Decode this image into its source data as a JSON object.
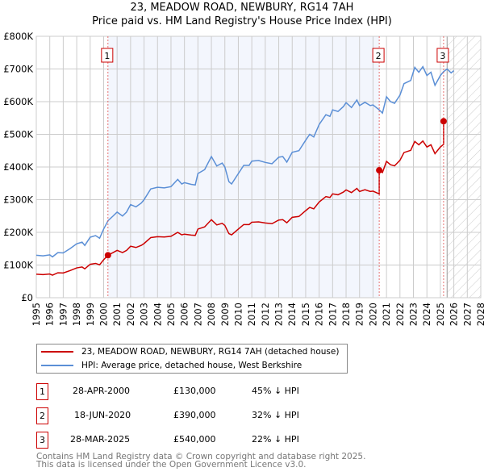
{
  "title": "23, MEADOW ROAD, NEWBURY, RG14 7AH",
  "subtitle": "Price paid vs. HM Land Registry's House Price Index (HPI)",
  "chart_data": {
    "type": "line",
    "xlim": [
      1995,
      2028
    ],
    "ylim": [
      0,
      800000
    ],
    "yticks": [
      0,
      100000,
      200000,
      300000,
      400000,
      500000,
      600000,
      700000,
      800000
    ],
    "ytick_labels": [
      "£0",
      "£100K",
      "£200K",
      "£300K",
      "£400K",
      "£500K",
      "£600K",
      "£700K",
      "£800K"
    ],
    "xticks": [
      1995,
      1996,
      1997,
      1998,
      1999,
      2000,
      2001,
      2002,
      2003,
      2004,
      2005,
      2006,
      2007,
      2008,
      2009,
      2010,
      2011,
      2012,
      2013,
      2014,
      2015,
      2016,
      2017,
      2018,
      2019,
      2020,
      2021,
      2022,
      2023,
      2024,
      2025,
      2026,
      2027,
      2028
    ],
    "forecast_start": 2025.5,
    "hpi_series": {
      "name": "HPI: Average price, detached house, West Berkshire",
      "color": "#5b8fd6",
      "x": [
        1995,
        1995.5,
        1996,
        1996.2,
        1996.6,
        1997,
        1997.5,
        1998,
        1998.4,
        1998.6,
        1999,
        1999.4,
        1999.7,
        2000,
        2000.33,
        2000.7,
        2001,
        2001.4,
        2001.7,
        2002,
        2002.4,
        2002.8,
        2003,
        2003.5,
        2004,
        2004.5,
        2005,
        2005.5,
        2005.8,
        2006,
        2006.5,
        2006.8,
        2007,
        2007.5,
        2008,
        2008.4,
        2008.8,
        2009,
        2009.3,
        2009.5,
        2010,
        2010.4,
        2010.8,
        2011,
        2011.5,
        2012,
        2012.5,
        2013,
        2013.3,
        2013.6,
        2014,
        2014.5,
        2015,
        2015.3,
        2015.6,
        2016,
        2016.5,
        2016.8,
        2017,
        2017.4,
        2017.8,
        2018,
        2018.4,
        2018.8,
        2019,
        2019.4,
        2019.8,
        2020,
        2020.46,
        2020.7,
        2021,
        2021.3,
        2021.6,
        2022,
        2022.3,
        2022.8,
        2023.1,
        2023.4,
        2023.7,
        2024,
        2024.3,
        2024.6,
        2025,
        2025.24,
        2025.5,
        2025.8,
        2026
      ],
      "y": [
        130000,
        128000,
        131000,
        125000,
        138000,
        137000,
        150000,
        165000,
        170000,
        160000,
        185000,
        190000,
        182000,
        210000,
        236000,
        250000,
        262000,
        250000,
        262000,
        285000,
        278000,
        290000,
        300000,
        333000,
        338000,
        336000,
        340000,
        362000,
        348000,
        352000,
        347000,
        345000,
        380000,
        392000,
        432000,
        403000,
        412000,
        400000,
        355000,
        348000,
        380000,
        405000,
        405000,
        418000,
        420000,
        414000,
        410000,
        430000,
        432000,
        415000,
        445000,
        450000,
        482000,
        500000,
        492000,
        530000,
        560000,
        555000,
        575000,
        570000,
        585000,
        597000,
        582000,
        605000,
        588000,
        598000,
        588000,
        590000,
        575000,
        565000,
        615000,
        600000,
        595000,
        620000,
        655000,
        665000,
        705000,
        690000,
        707000,
        680000,
        690000,
        650000,
        680000,
        692000,
        700000,
        688000,
        695000
      ]
    },
    "price_series": {
      "name": "23, MEADOW ROAD, NEWBURY, RG14 7AH (detached house)",
      "color": "#cc0000"
    },
    "sales": [
      {
        "id": "1",
        "x": 2000.32,
        "price": 130000
      },
      {
        "id": "2",
        "x": 2020.46,
        "price": 390000
      },
      {
        "id": "3",
        "x": 2025.24,
        "price": 540000
      }
    ]
  },
  "legend": {
    "price_label": "23, MEADOW ROAD, NEWBURY, RG14 7AH (detached house)",
    "hpi_label": "HPI: Average price, detached house, West Berkshire"
  },
  "table": [
    {
      "id": "1",
      "date": "28-APR-2000",
      "price": "£130,000",
      "hpi": "45% ↓ HPI"
    },
    {
      "id": "2",
      "date": "18-JUN-2020",
      "price": "£390,000",
      "hpi": "32% ↓ HPI"
    },
    {
      "id": "3",
      "date": "28-MAR-2025",
      "price": "£540,000",
      "hpi": "22% ↓ HPI"
    }
  ],
  "footer": {
    "line1": "Contains HM Land Registry data © Crown copyright and database right 2025.",
    "line2": "This data is licensed under the Open Government Licence v3.0."
  }
}
